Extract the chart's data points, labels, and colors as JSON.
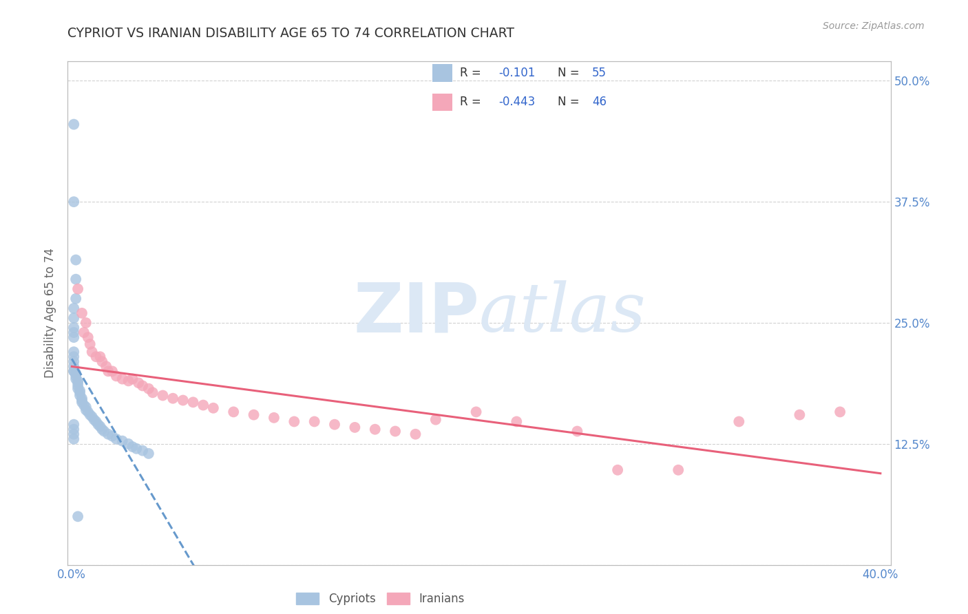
{
  "title": "CYPRIOT VS IRANIAN DISABILITY AGE 65 TO 74 CORRELATION CHART",
  "source": "Source: ZipAtlas.com",
  "ylabel": "Disability Age 65 to 74",
  "xlim": [
    -0.002,
    0.405
  ],
  "ylim": [
    0.0,
    0.52
  ],
  "xticks": [
    0.0,
    0.1,
    0.2,
    0.3,
    0.4
  ],
  "yticks": [
    0.0,
    0.125,
    0.25,
    0.375,
    0.5
  ],
  "xticklabels": [
    "0.0%",
    "",
    "",
    "",
    "40.0%"
  ],
  "yticklabels_right": [
    "",
    "12.5%",
    "25.0%",
    "37.5%",
    "50.0%"
  ],
  "cypriot_color": "#a8c4e0",
  "iranian_color": "#f4a7b9",
  "cypriot_line_color": "#6699cc",
  "iranian_line_color": "#e8607a",
  "R_cypriot": -0.101,
  "N_cypriot": 55,
  "R_iranian": -0.443,
  "N_iranian": 46,
  "background_color": "#ffffff",
  "grid_color": "#cccccc",
  "title_color": "#333333",
  "axis_label_color": "#666666",
  "tick_label_color": "#5588cc",
  "legend_text_color": "#333333",
  "legend_value_color": "#3366cc",
  "watermark_color": "#dce8f5",
  "cypriot_x": [
    0.001,
    0.001,
    0.002,
    0.002,
    0.002,
    0.001,
    0.001,
    0.001,
    0.001,
    0.001,
    0.001,
    0.001,
    0.001,
    0.001,
    0.001,
    0.001,
    0.002,
    0.002,
    0.002,
    0.003,
    0.003,
    0.003,
    0.003,
    0.004,
    0.004,
    0.004,
    0.005,
    0.005,
    0.005,
    0.006,
    0.007,
    0.007,
    0.008,
    0.009,
    0.01,
    0.011,
    0.012,
    0.013,
    0.014,
    0.015,
    0.016,
    0.018,
    0.02,
    0.022,
    0.025,
    0.028,
    0.03,
    0.032,
    0.035,
    0.038,
    0.001,
    0.001,
    0.001,
    0.001,
    0.003
  ],
  "cypriot_y": [
    0.455,
    0.375,
    0.315,
    0.295,
    0.275,
    0.265,
    0.255,
    0.245,
    0.24,
    0.235,
    0.22,
    0.215,
    0.21,
    0.205,
    0.2,
    0.2,
    0.198,
    0.195,
    0.192,
    0.19,
    0.188,
    0.185,
    0.182,
    0.18,
    0.178,
    0.175,
    0.172,
    0.17,
    0.168,
    0.165,
    0.163,
    0.16,
    0.158,
    0.155,
    0.153,
    0.15,
    0.148,
    0.145,
    0.143,
    0.14,
    0.138,
    0.135,
    0.133,
    0.13,
    0.128,
    0.125,
    0.122,
    0.12,
    0.118,
    0.115,
    0.145,
    0.14,
    0.135,
    0.13,
    0.05
  ],
  "iranian_x": [
    0.003,
    0.005,
    0.006,
    0.007,
    0.008,
    0.009,
    0.01,
    0.012,
    0.014,
    0.015,
    0.017,
    0.018,
    0.02,
    0.022,
    0.025,
    0.028,
    0.03,
    0.033,
    0.035,
    0.038,
    0.04,
    0.045,
    0.05,
    0.055,
    0.06,
    0.065,
    0.07,
    0.08,
    0.09,
    0.1,
    0.11,
    0.12,
    0.13,
    0.14,
    0.15,
    0.16,
    0.17,
    0.18,
    0.2,
    0.22,
    0.25,
    0.27,
    0.3,
    0.33,
    0.36,
    0.38
  ],
  "iranian_y": [
    0.285,
    0.26,
    0.24,
    0.25,
    0.235,
    0.228,
    0.22,
    0.215,
    0.215,
    0.21,
    0.205,
    0.2,
    0.2,
    0.195,
    0.192,
    0.19,
    0.192,
    0.188,
    0.185,
    0.182,
    0.178,
    0.175,
    0.172,
    0.17,
    0.168,
    0.165,
    0.162,
    0.158,
    0.155,
    0.152,
    0.148,
    0.148,
    0.145,
    0.142,
    0.14,
    0.138,
    0.135,
    0.15,
    0.158,
    0.148,
    0.138,
    0.098,
    0.098,
    0.148,
    0.155,
    0.158
  ]
}
